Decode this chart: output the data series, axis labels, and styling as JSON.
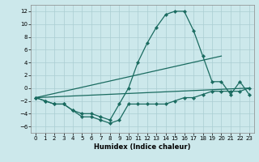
{
  "xlabel": "Humidex (Indice chaleur)",
  "background_color": "#cce8eb",
  "grid_color": "#aacdd2",
  "line_color": "#1a6b60",
  "xlim": [
    -0.5,
    23.5
  ],
  "ylim": [
    -7,
    13
  ],
  "yticks": [
    -6,
    -4,
    -2,
    0,
    2,
    4,
    6,
    8,
    10,
    12
  ],
  "xticks": [
    0,
    1,
    2,
    3,
    4,
    5,
    6,
    7,
    8,
    9,
    10,
    11,
    12,
    13,
    14,
    15,
    16,
    17,
    18,
    19,
    20,
    21,
    22,
    23
  ],
  "series": [
    {
      "x": [
        0,
        1,
        2,
        3,
        4,
        5,
        6,
        7,
        8,
        9,
        10,
        11,
        12,
        13,
        14,
        15,
        16,
        17,
        18,
        19,
        20,
        21,
        22,
        23
      ],
      "y": [
        -1.5,
        -2.0,
        -2.5,
        -2.5,
        -3.5,
        -4.5,
        -4.5,
        -5.0,
        -5.5,
        -5.0,
        -2.5,
        -2.5,
        -2.5,
        -2.5,
        -2.5,
        -2.0,
        -1.5,
        -1.5,
        -1.0,
        -0.5,
        -0.5,
        -0.5,
        -0.5,
        0.0
      ],
      "marker": true
    },
    {
      "x": [
        0,
        1,
        2,
        3,
        4,
        5,
        6,
        7,
        8,
        9,
        10,
        11,
        12,
        13,
        14,
        15,
        16,
        17,
        18,
        19,
        20,
        21,
        22,
        23
      ],
      "y": [
        -1.5,
        -2.0,
        -2.5,
        -2.5,
        -3.5,
        -4.0,
        -4.0,
        -4.5,
        -5.0,
        -2.5,
        0.0,
        4.0,
        7.0,
        9.5,
        11.5,
        12.0,
        12.0,
        9.0,
        5.0,
        1.0,
        1.0,
        -1.0,
        1.0,
        -1.0
      ],
      "marker": true
    },
    {
      "x": [
        0,
        23
      ],
      "y": [
        -1.5,
        0.0
      ],
      "marker": false
    },
    {
      "x": [
        0,
        20
      ],
      "y": [
        -1.5,
        5.0
      ],
      "marker": false
    }
  ]
}
